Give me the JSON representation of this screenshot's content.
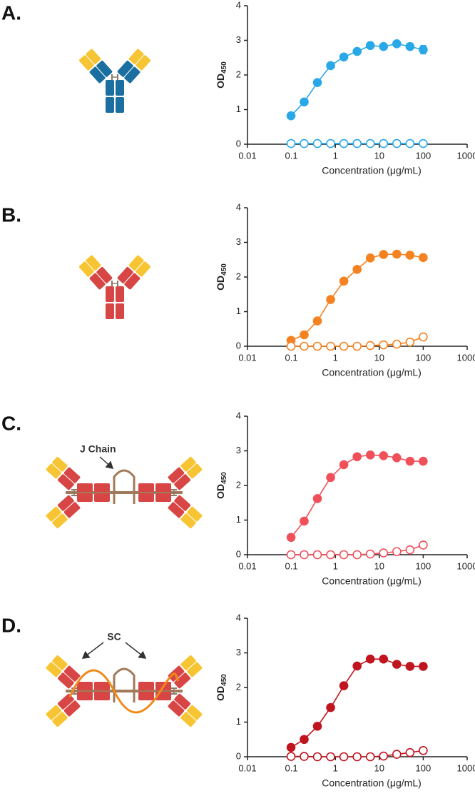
{
  "chart_data": [
    {
      "type": "line",
      "panel_label": "A.",
      "xlabel": "Concentration (μg/mL)",
      "ylabel": {
        "text": "OD",
        "subscript": "450"
      },
      "x": [
        0.098,
        0.195,
        0.39,
        0.78,
        1.56,
        3.125,
        6.25,
        12.5,
        25,
        50,
        100
      ],
      "series": [
        {
          "color": "#29a8e8",
          "filled": true,
          "values": [
            0.82,
            1.22,
            1.78,
            2.27,
            2.52,
            2.68,
            2.85,
            2.82,
            2.9,
            2.82,
            2.73
          ],
          "errors": [
            null,
            null,
            null,
            null,
            null,
            null,
            null,
            null,
            null,
            null,
            0.12
          ]
        },
        {
          "color": "#29a8e8",
          "filled": false,
          "values": [
            0.02,
            0.02,
            0.02,
            0.02,
            0.02,
            0.02,
            0.02,
            0.02,
            0.02,
            0.02,
            0.02
          ]
        }
      ],
      "xlim": [
        0.01,
        1000
      ],
      "xticks": [
        0.01,
        0.1,
        1,
        10,
        100,
        1000
      ],
      "log_x": true,
      "ylim": [
        0,
        4
      ],
      "yticks": [
        0,
        1,
        2,
        3,
        4
      ]
    },
    {
      "type": "line",
      "panel_label": "B.",
      "xlabel": "Concentration (μg/mL)",
      "ylabel": {
        "text": "OD",
        "subscript": "450"
      },
      "x": [
        0.098,
        0.195,
        0.39,
        0.78,
        1.56,
        3.125,
        6.25,
        12.5,
        25,
        50,
        100
      ],
      "series": [
        {
          "color": "#f58220",
          "filled": true,
          "values": [
            0.17,
            0.33,
            0.73,
            1.35,
            1.88,
            2.22,
            2.55,
            2.65,
            2.66,
            2.63,
            2.56
          ]
        },
        {
          "color": "#f58220",
          "filled": false,
          "values": [
            0,
            0,
            0,
            0,
            0,
            0,
            0.02,
            0.04,
            0.06,
            0.12,
            0.27
          ]
        }
      ],
      "xlim": [
        0.01,
        1000
      ],
      "xticks": [
        0.01,
        0.1,
        1,
        10,
        100,
        1000
      ],
      "log_x": true,
      "ylim": [
        0,
        4
      ],
      "yticks": [
        0,
        1,
        2,
        3,
        4
      ]
    },
    {
      "type": "line",
      "panel_label": "C.",
      "xlabel": "Concentration (μg/mL)",
      "ylabel": {
        "text": "OD",
        "subscript": "450"
      },
      "annotations": [
        "J Chain"
      ],
      "x": [
        0.098,
        0.195,
        0.39,
        0.78,
        1.56,
        3.125,
        6.25,
        12.5,
        25,
        50,
        100
      ],
      "series": [
        {
          "color": "#f0505a",
          "filled": true,
          "values": [
            0.5,
            0.97,
            1.62,
            2.23,
            2.6,
            2.83,
            2.88,
            2.86,
            2.8,
            2.7,
            2.7
          ]
        },
        {
          "color": "#f0505a",
          "filled": false,
          "values": [
            0,
            0,
            0,
            0,
            0,
            0,
            0.02,
            0.05,
            0.09,
            0.14,
            0.28
          ]
        }
      ],
      "xlim": [
        0.01,
        1000
      ],
      "xticks": [
        0.01,
        0.1,
        1,
        10,
        100,
        1000
      ],
      "log_x": true,
      "ylim": [
        0,
        4
      ],
      "yticks": [
        0,
        1,
        2,
        3,
        4
      ]
    },
    {
      "type": "line",
      "panel_label": "D.",
      "xlabel": "Concentration (μg/mL)",
      "ylabel": {
        "text": "OD",
        "subscript": "450"
      },
      "annotations": [
        "SC"
      ],
      "x": [
        0.098,
        0.195,
        0.39,
        0.78,
        1.56,
        3.125,
        6.25,
        12.5,
        25,
        50,
        100
      ],
      "series": [
        {
          "color": "#c0141e",
          "filled": true,
          "values": [
            0.27,
            0.5,
            0.88,
            1.42,
            2.05,
            2.62,
            2.82,
            2.82,
            2.67,
            2.61,
            2.61
          ]
        },
        {
          "color": "#c0141e",
          "filled": false,
          "values": [
            0.01,
            0.01,
            0,
            0,
            0,
            0,
            0,
            0.02,
            0.07,
            0.12,
            0.18
          ]
        }
      ],
      "xlim": [
        0.01,
        1000
      ],
      "xticks": [
        0.01,
        0.1,
        1,
        10,
        100,
        1000
      ],
      "log_x": true,
      "ylim": [
        0,
        4
      ],
      "yticks": [
        0,
        1,
        2,
        3,
        4
      ]
    }
  ]
}
